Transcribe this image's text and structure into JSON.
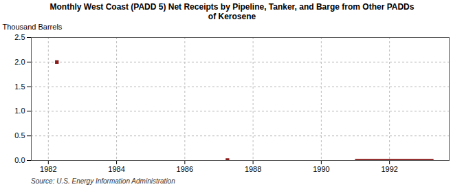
{
  "chart_data": {
    "type": "scatter",
    "title": "Monthly West Coast (PADD 5) Net Receipts by Pipeline, Tanker, and Barge from Other PADDs\nof Kerosene",
    "ylabel": "Thousand Barrels",
    "source": "Source: U.S. Energy Information Administration",
    "color": "#8B1A1A",
    "series": [
      {
        "type": "scatter",
        "marker": "square",
        "x": [
          1982.25,
          1987.25
        ],
        "values": [
          2.0,
          0.008
        ]
      },
      {
        "type": "area",
        "x": [
          1991.0,
          1993.3
        ],
        "values": [
          0.025,
          0.025
        ]
      }
    ],
    "xlim": [
      1981.5,
      1993.75
    ],
    "xticks": [
      1982,
      1984,
      1986,
      1988,
      1990,
      1992
    ],
    "ylim": [
      0.0,
      2.5
    ],
    "yticks": [
      {
        "value": 0.0,
        "label": "0.0"
      },
      0.5,
      {
        "value": 1.0,
        "label": "1.0"
      },
      1.5,
      {
        "value": 2.0,
        "label": "2.0"
      },
      2.5
    ],
    "grid": true
  }
}
